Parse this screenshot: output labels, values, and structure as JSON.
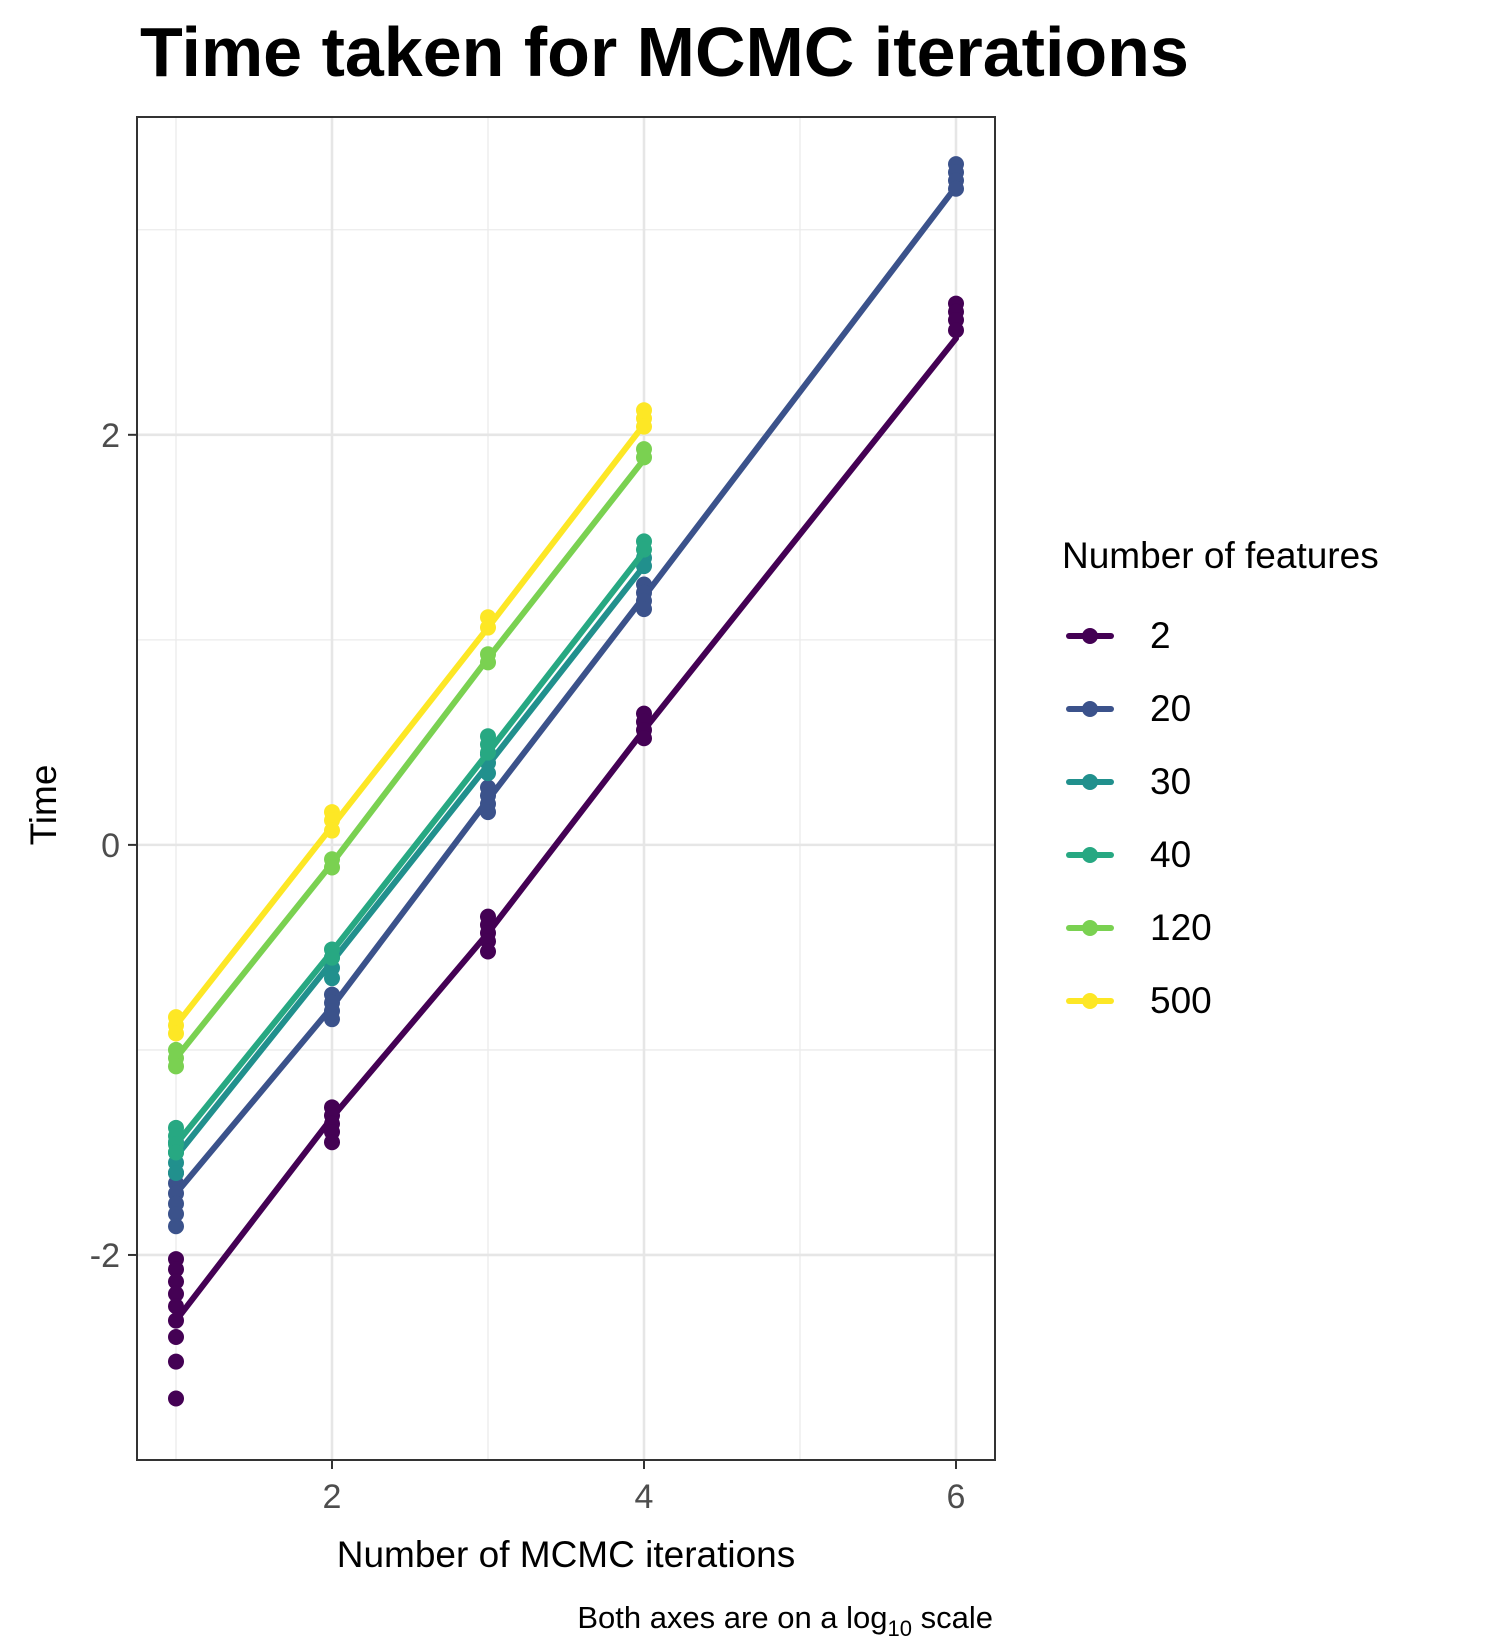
{
  "chart_data": {
    "type": "line",
    "title": "Time taken for MCMC iterations",
    "xlabel": "Number of MCMC iterations",
    "ylabel": "Time",
    "caption_prefix": "Both axes are on a log",
    "caption_sub": "10",
    "caption_suffix": " scale",
    "xlim": [
      0.75,
      6.25
    ],
    "ylim": [
      -3.0,
      3.55
    ],
    "x_ticks": [
      2,
      4,
      6
    ],
    "y_ticks": [
      -2,
      0,
      2
    ],
    "x_minor": [
      1,
      3,
      5
    ],
    "y_minor": [
      -1,
      1,
      3
    ],
    "grid": true,
    "legend": {
      "title": "Number of features",
      "placement": "right"
    },
    "series": [
      {
        "name": "2",
        "color": "#440154",
        "line": [
          [
            1,
            -2.32
          ],
          [
            2,
            -1.33
          ],
          [
            3,
            -0.43
          ],
          [
            4,
            0.56
          ],
          [
            6,
            2.47
          ]
        ],
        "points": [
          [
            1,
            -2.02
          ],
          [
            1,
            -2.07
          ],
          [
            1,
            -2.13
          ],
          [
            1,
            -2.19
          ],
          [
            1,
            -2.25
          ],
          [
            1,
            -2.32
          ],
          [
            1,
            -2.4
          ],
          [
            1,
            -2.52
          ],
          [
            1,
            -2.7
          ],
          [
            2,
            -1.28
          ],
          [
            2,
            -1.32
          ],
          [
            2,
            -1.36
          ],
          [
            2,
            -1.4
          ],
          [
            2,
            -1.45
          ],
          [
            3,
            -0.35
          ],
          [
            3,
            -0.39
          ],
          [
            3,
            -0.43
          ],
          [
            3,
            -0.47
          ],
          [
            3,
            -0.52
          ],
          [
            4,
            0.64
          ],
          [
            4,
            0.6
          ],
          [
            4,
            0.56
          ],
          [
            4,
            0.52
          ],
          [
            6,
            2.64
          ],
          [
            6,
            2.6
          ],
          [
            6,
            2.56
          ],
          [
            6,
            2.51
          ]
        ]
      },
      {
        "name": "20",
        "color": "#3b528b",
        "line": [
          [
            1,
            -1.7
          ],
          [
            2,
            -0.79
          ],
          [
            3,
            0.22
          ],
          [
            4,
            1.21
          ],
          [
            6,
            3.21
          ]
        ],
        "points": [
          [
            1,
            -1.6
          ],
          [
            1,
            -1.65
          ],
          [
            1,
            -1.7
          ],
          [
            1,
            -1.75
          ],
          [
            1,
            -1.8
          ],
          [
            1,
            -1.86
          ],
          [
            2,
            -0.73
          ],
          [
            2,
            -0.77
          ],
          [
            2,
            -0.81
          ],
          [
            2,
            -0.85
          ],
          [
            3,
            0.28
          ],
          [
            3,
            0.24
          ],
          [
            3,
            0.2
          ],
          [
            3,
            0.16
          ],
          [
            4,
            1.27
          ],
          [
            4,
            1.23
          ],
          [
            4,
            1.19
          ],
          [
            4,
            1.15
          ],
          [
            6,
            3.32
          ],
          [
            6,
            3.28
          ],
          [
            6,
            3.24
          ],
          [
            6,
            3.2
          ]
        ]
      },
      {
        "name": "30",
        "color": "#21908d",
        "line": [
          [
            1,
            -1.52
          ],
          [
            2,
            -0.57
          ],
          [
            3,
            0.39
          ],
          [
            4,
            1.36
          ]
        ],
        "points": [
          [
            1,
            -1.45
          ],
          [
            1,
            -1.5
          ],
          [
            1,
            -1.55
          ],
          [
            1,
            -1.6
          ],
          [
            2,
            -0.55
          ],
          [
            2,
            -0.6
          ],
          [
            2,
            -0.65
          ],
          [
            3,
            0.44
          ],
          [
            3,
            0.4
          ],
          [
            3,
            0.35
          ],
          [
            4,
            1.4
          ],
          [
            4,
            1.36
          ]
        ]
      },
      {
        "name": "40",
        "color": "#27a882",
        "line": [
          [
            1,
            -1.46
          ],
          [
            2,
            -0.52
          ],
          [
            3,
            0.45
          ],
          [
            4,
            1.43
          ]
        ],
        "points": [
          [
            1,
            -1.38
          ],
          [
            1,
            -1.42
          ],
          [
            1,
            -1.46
          ],
          [
            1,
            -1.5
          ],
          [
            2,
            -0.51
          ],
          [
            2,
            -0.55
          ],
          [
            3,
            0.53
          ],
          [
            3,
            0.49
          ],
          [
            3,
            0.45
          ],
          [
            4,
            1.48
          ],
          [
            4,
            1.44
          ]
        ]
      },
      {
        "name": "120",
        "color": "#7ad151",
        "line": [
          [
            1,
            -1.04
          ],
          [
            2,
            -0.09
          ],
          [
            3,
            0.91
          ],
          [
            4,
            1.88
          ]
        ],
        "points": [
          [
            1,
            -1.0
          ],
          [
            1,
            -1.04
          ],
          [
            1,
            -1.08
          ],
          [
            2,
            -0.07
          ],
          [
            2,
            -0.11
          ],
          [
            3,
            0.93
          ],
          [
            3,
            0.89
          ],
          [
            4,
            1.93
          ],
          [
            4,
            1.89
          ]
        ]
      },
      {
        "name": "500",
        "color": "#fde725",
        "line": [
          [
            1,
            -0.88
          ],
          [
            2,
            0.09
          ],
          [
            3,
            1.06
          ],
          [
            4,
            2.05
          ]
        ],
        "points": [
          [
            1,
            -0.84
          ],
          [
            1,
            -0.88
          ],
          [
            1,
            -0.92
          ],
          [
            2,
            0.16
          ],
          [
            2,
            0.12
          ],
          [
            2,
            0.07
          ],
          [
            3,
            1.11
          ],
          [
            3,
            1.06
          ],
          [
            4,
            2.12
          ],
          [
            4,
            2.08
          ],
          [
            4,
            2.04
          ]
        ]
      }
    ]
  }
}
